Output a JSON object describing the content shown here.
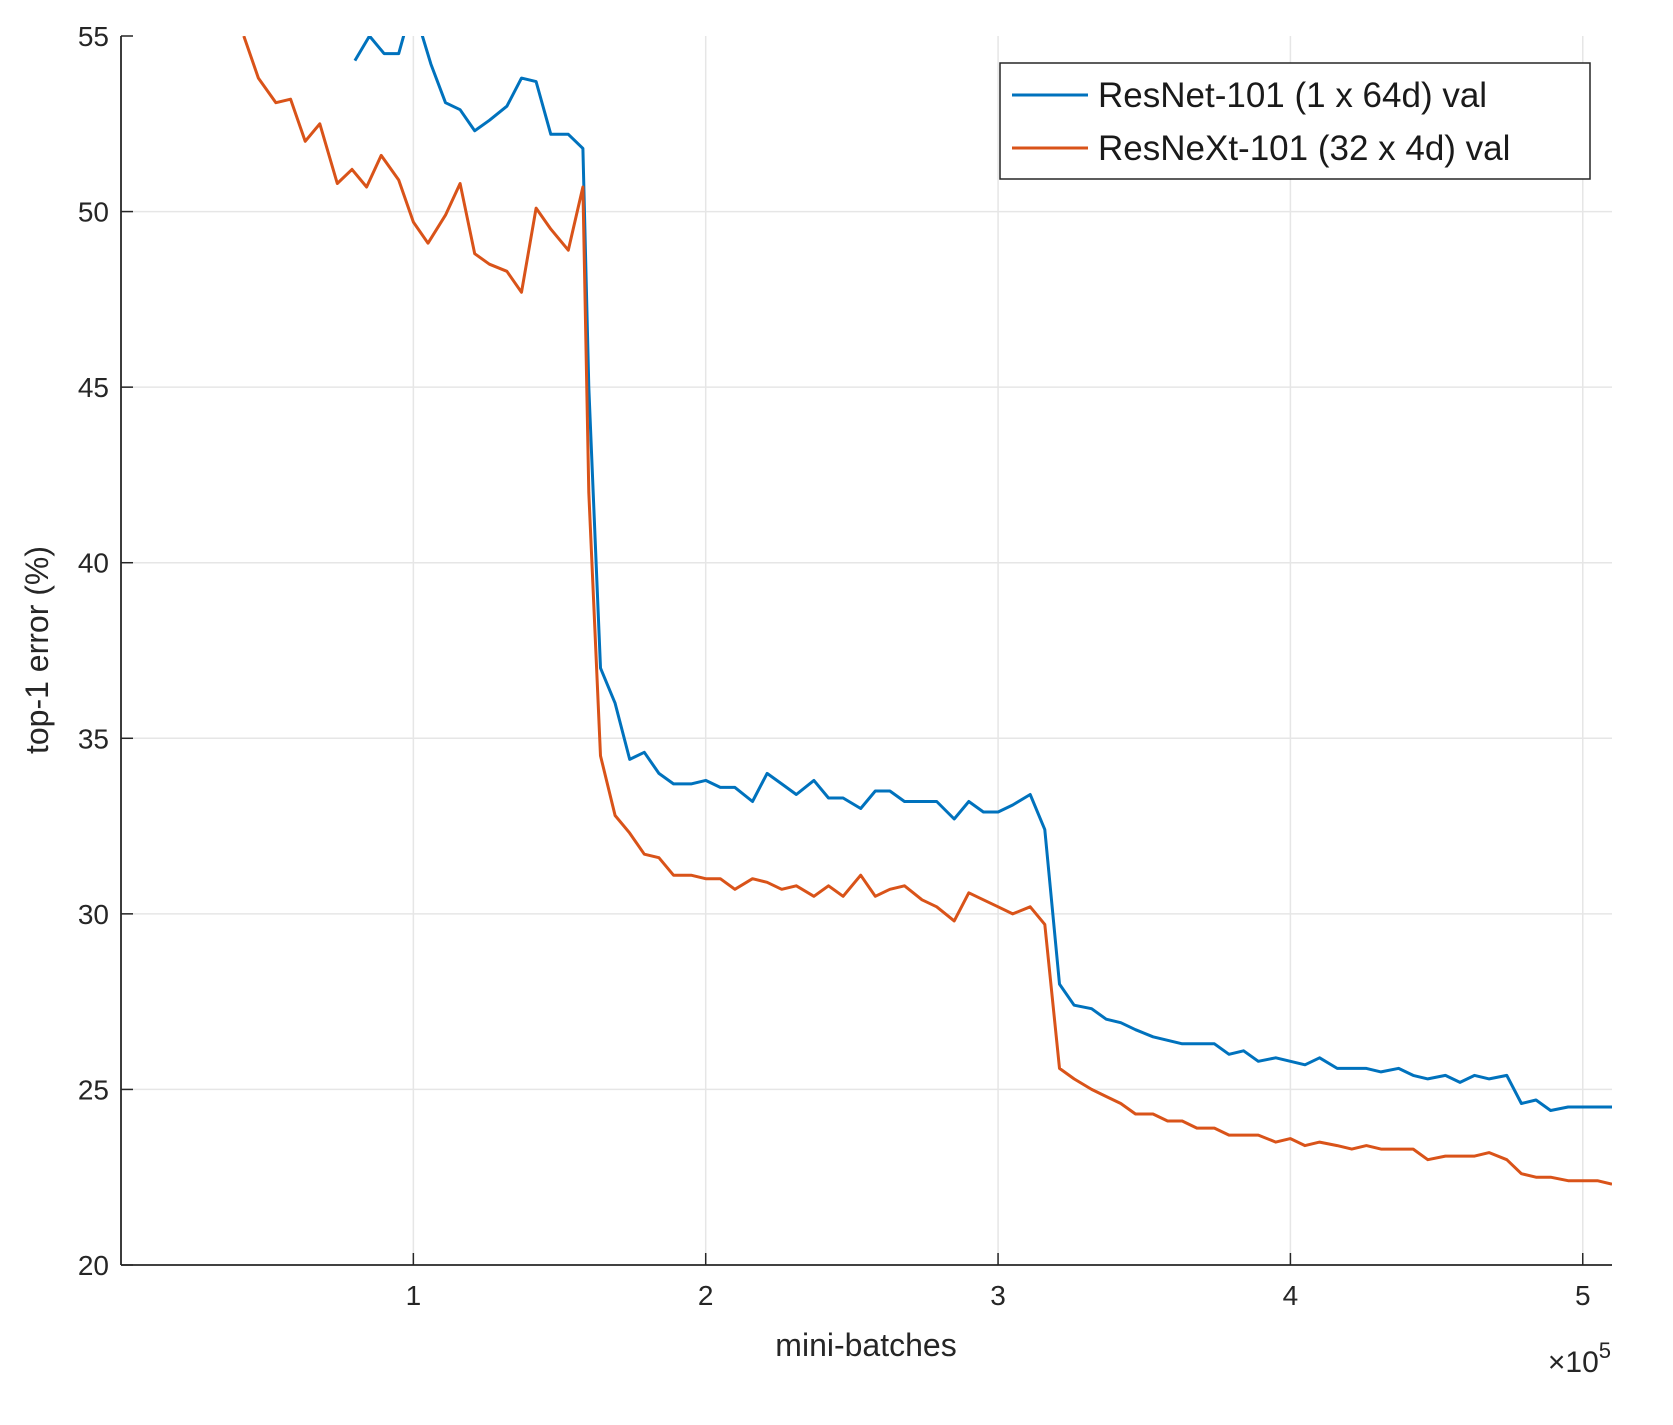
{
  "chart_data": {
    "type": "line",
    "title": "",
    "xlabel": "mini-batches",
    "ylabel": "top-1 error (%)",
    "x_multiplier": "×10",
    "x_multiplier_exp": "5",
    "xlim": [
      0,
      5.1
    ],
    "ylim": [
      20,
      55
    ],
    "xticks": [
      1,
      2,
      3,
      4,
      5
    ],
    "yticks": [
      20,
      25,
      30,
      35,
      40,
      45,
      50,
      55
    ],
    "grid": true,
    "legend_position": "top-right",
    "series": [
      {
        "name": "ResNet-101 (1 x 64d) val",
        "color": "#0072BD",
        "x": [
          0.8,
          0.85,
          0.9,
          0.95,
          1.0,
          1.02,
          1.06,
          1.11,
          1.16,
          1.21,
          1.26,
          1.32,
          1.37,
          1.42,
          1.47,
          1.53,
          1.58,
          1.6,
          1.64,
          1.69,
          1.74,
          1.79,
          1.84,
          1.89,
          1.95,
          2.0,
          2.05,
          2.1,
          2.16,
          2.21,
          2.26,
          2.31,
          2.37,
          2.42,
          2.47,
          2.53,
          2.58,
          2.63,
          2.68,
          2.74,
          2.79,
          2.85,
          2.9,
          2.95,
          3.0,
          3.05,
          3.11,
          3.16,
          3.21,
          3.26,
          3.32,
          3.37,
          3.42,
          3.47,
          3.53,
          3.58,
          3.63,
          3.68,
          3.74,
          3.79,
          3.84,
          3.89,
          3.95,
          4.0,
          4.05,
          4.1,
          4.16,
          4.21,
          4.26,
          4.31,
          4.37,
          4.42,
          4.47,
          4.53,
          4.58,
          4.63,
          4.68,
          4.74,
          4.79,
          4.84,
          4.89,
          4.95,
          5.0,
          5.05,
          5.1
        ],
        "values": [
          54.3,
          55.0,
          54.5,
          54.5,
          56.0,
          55.3,
          54.2,
          53.1,
          52.9,
          52.3,
          52.6,
          53.0,
          53.8,
          53.7,
          52.2,
          52.2,
          51.8,
          45.0,
          37.0,
          36.0,
          34.4,
          34.6,
          34.0,
          33.7,
          33.7,
          33.8,
          33.6,
          33.6,
          33.2,
          34.0,
          33.7,
          33.4,
          33.8,
          33.3,
          33.3,
          33.0,
          33.5,
          33.5,
          33.2,
          33.2,
          33.2,
          32.7,
          33.2,
          32.9,
          32.9,
          33.1,
          33.4,
          32.4,
          28.0,
          27.4,
          27.3,
          27.0,
          26.9,
          26.7,
          26.5,
          26.4,
          26.3,
          26.3,
          26.3,
          26.0,
          26.1,
          25.8,
          25.9,
          25.8,
          25.7,
          25.9,
          25.6,
          25.6,
          25.6,
          25.5,
          25.6,
          25.4,
          25.3,
          25.4,
          25.2,
          25.4,
          25.3,
          25.4,
          24.6,
          24.7,
          24.4,
          24.5,
          24.5,
          24.5,
          24.5
        ]
      },
      {
        "name": "ResNeXt-101 (32 x 4d) val",
        "color": "#D95319",
        "x": [
          0.42,
          0.47,
          0.53,
          0.58,
          0.63,
          0.68,
          0.74,
          0.79,
          0.84,
          0.89,
          0.95,
          1.0,
          1.05,
          1.11,
          1.16,
          1.21,
          1.26,
          1.32,
          1.37,
          1.42,
          1.47,
          1.53,
          1.58,
          1.6,
          1.64,
          1.69,
          1.74,
          1.79,
          1.84,
          1.89,
          1.95,
          2.0,
          2.05,
          2.1,
          2.16,
          2.21,
          2.26,
          2.31,
          2.37,
          2.42,
          2.47,
          2.53,
          2.58,
          2.63,
          2.68,
          2.74,
          2.79,
          2.85,
          2.9,
          2.95,
          3.0,
          3.05,
          3.11,
          3.16,
          3.21,
          3.26,
          3.32,
          3.37,
          3.42,
          3.47,
          3.53,
          3.58,
          3.63,
          3.68,
          3.74,
          3.79,
          3.84,
          3.89,
          3.95,
          4.0,
          4.05,
          4.1,
          4.16,
          4.21,
          4.26,
          4.31,
          4.37,
          4.42,
          4.47,
          4.53,
          4.58,
          4.63,
          4.68,
          4.74,
          4.79,
          4.84,
          4.89,
          4.95,
          5.0,
          5.05,
          5.1
        ],
        "values": [
          55.0,
          53.8,
          53.1,
          53.2,
          52.0,
          52.5,
          50.8,
          51.2,
          50.7,
          51.6,
          50.9,
          49.7,
          49.1,
          49.9,
          50.8,
          48.8,
          48.5,
          48.3,
          47.7,
          50.1,
          49.5,
          48.9,
          50.7,
          42.0,
          34.5,
          32.8,
          32.3,
          31.7,
          31.6,
          31.1,
          31.1,
          31.0,
          31.0,
          30.7,
          31.0,
          30.9,
          30.7,
          30.8,
          30.5,
          30.8,
          30.5,
          31.1,
          30.5,
          30.7,
          30.8,
          30.4,
          30.2,
          29.8,
          30.6,
          30.4,
          30.2,
          30.0,
          30.2,
          29.7,
          25.6,
          25.3,
          25.0,
          24.8,
          24.6,
          24.3,
          24.3,
          24.1,
          24.1,
          23.9,
          23.9,
          23.7,
          23.7,
          23.7,
          23.5,
          23.6,
          23.4,
          23.5,
          23.4,
          23.3,
          23.4,
          23.3,
          23.3,
          23.3,
          23.0,
          23.1,
          23.1,
          23.1,
          23.2,
          23.0,
          22.6,
          22.5,
          22.5,
          22.4,
          22.4,
          22.4,
          22.3
        ]
      }
    ]
  }
}
